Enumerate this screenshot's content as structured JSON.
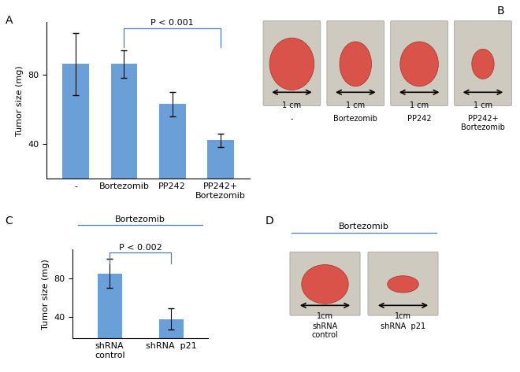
{
  "chart_data": [
    {
      "type": "bar",
      "panel_label": "A",
      "y_label": "Tumor size (mg)",
      "categories": [
        "-",
        "Bortezomib",
        "PP242",
        "PP242+\nBortezomib"
      ],
      "values": [
        86,
        86,
        63,
        42
      ],
      "errors": [
        18,
        8,
        7,
        4
      ],
      "color": "#6a9fd8",
      "ylim": [
        20,
        110
      ],
      "yticks": [
        40,
        80
      ],
      "annotations": [
        {
          "text": "P < 0.001",
          "between": [
            1,
            3
          ]
        }
      ]
    },
    {
      "type": "bar",
      "panel_label": "C",
      "group_label": "Bortezomib",
      "y_label": "Tumor size (mg)",
      "categories": [
        "shRNA\ncontrol",
        "shRNA  p21"
      ],
      "values": [
        85,
        38
      ],
      "errors": [
        15,
        11
      ],
      "color": "#6a9fd8",
      "ylim": [
        18,
        110
      ],
      "yticks": [
        40,
        80
      ],
      "annotations": [
        {
          "text": "P < 0.002",
          "between": [
            0,
            1
          ]
        }
      ]
    }
  ],
  "photo_panels": [
    {
      "panel_label": "B",
      "items": [
        {
          "label": "-",
          "scale": "1 cm"
        },
        {
          "label": "Bortezomib",
          "scale": "1 cm"
        },
        {
          "label": "PP242",
          "scale": "1 cm"
        },
        {
          "label": "PP242+\nBortezomib",
          "scale": "1 cm"
        }
      ]
    },
    {
      "panel_label": "D",
      "group_label": "Bortezomib",
      "items": [
        {
          "label": "shRNA\ncontrol",
          "scale": "1cm"
        },
        {
          "label": "shRNA  p21",
          "scale": "1cm"
        }
      ]
    }
  ]
}
